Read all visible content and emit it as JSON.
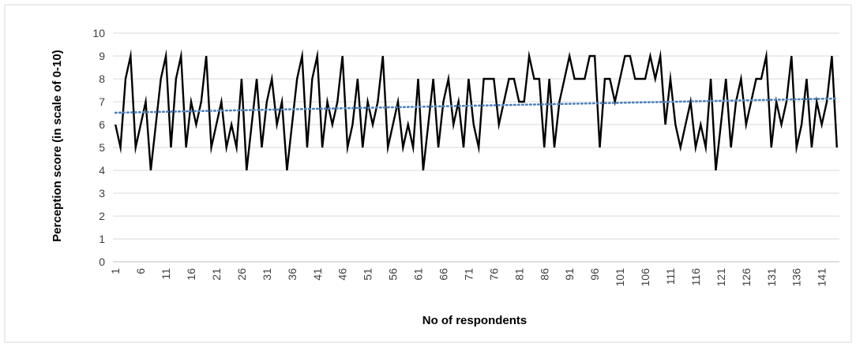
{
  "chart_data": {
    "type": "line",
    "title": "",
    "xlabel": "No of respondents",
    "ylabel": "Perception score (in scale of 0-10)",
    "ylim": [
      0,
      10
    ],
    "y_ticks": [
      0,
      1,
      2,
      3,
      4,
      5,
      6,
      7,
      8,
      9,
      10
    ],
    "x_tick_labels": [
      "1",
      "6",
      "11",
      "16",
      "21",
      "26",
      "31",
      "36",
      "41",
      "46",
      "51",
      "56",
      "61",
      "66",
      "71",
      "76",
      "81",
      "86",
      "91",
      "96",
      "101",
      "106",
      "111",
      "116",
      "121",
      "126",
      "131",
      "136",
      "141"
    ],
    "grid": true,
    "legend": "none",
    "series": [
      {
        "kind": "data",
        "color": "#000000",
        "x_start": 1,
        "values": [
          6,
          5,
          8,
          9,
          5,
          6,
          7,
          4,
          6,
          8,
          9,
          5,
          8,
          9,
          5,
          7,
          6,
          7,
          9,
          5,
          6,
          7,
          5,
          6,
          5,
          8,
          4,
          6,
          8,
          5,
          7,
          8,
          6,
          7,
          4,
          6,
          8,
          9,
          5,
          8,
          9,
          5,
          7,
          6,
          7,
          9,
          5,
          6,
          8,
          5,
          7,
          6,
          7,
          9,
          5,
          6,
          7,
          5,
          6,
          5,
          8,
          4,
          6,
          8,
          5,
          7,
          8,
          6,
          7,
          5,
          8,
          6,
          5,
          8,
          8,
          8,
          6,
          7,
          8,
          8,
          7,
          7,
          9,
          8,
          8,
          5,
          8,
          5,
          7,
          8,
          9,
          8,
          8,
          8,
          9,
          9,
          5,
          8,
          8,
          7,
          8,
          9,
          9,
          8,
          8,
          8,
          9,
          8,
          9,
          6,
          8,
          6,
          5,
          6,
          7,
          5,
          6,
          5,
          8,
          4,
          6,
          8,
          5,
          7,
          8,
          6,
          7,
          8,
          8,
          9,
          5,
          7,
          6,
          7,
          9,
          5,
          6,
          8,
          5,
          7,
          6,
          7,
          9,
          5
        ]
      },
      {
        "kind": "trendline",
        "color": "#4f81bd",
        "style": "dotted",
        "x_range": [
          1,
          144
        ],
        "y_range": [
          6.52,
          7.14
        ]
      }
    ]
  }
}
